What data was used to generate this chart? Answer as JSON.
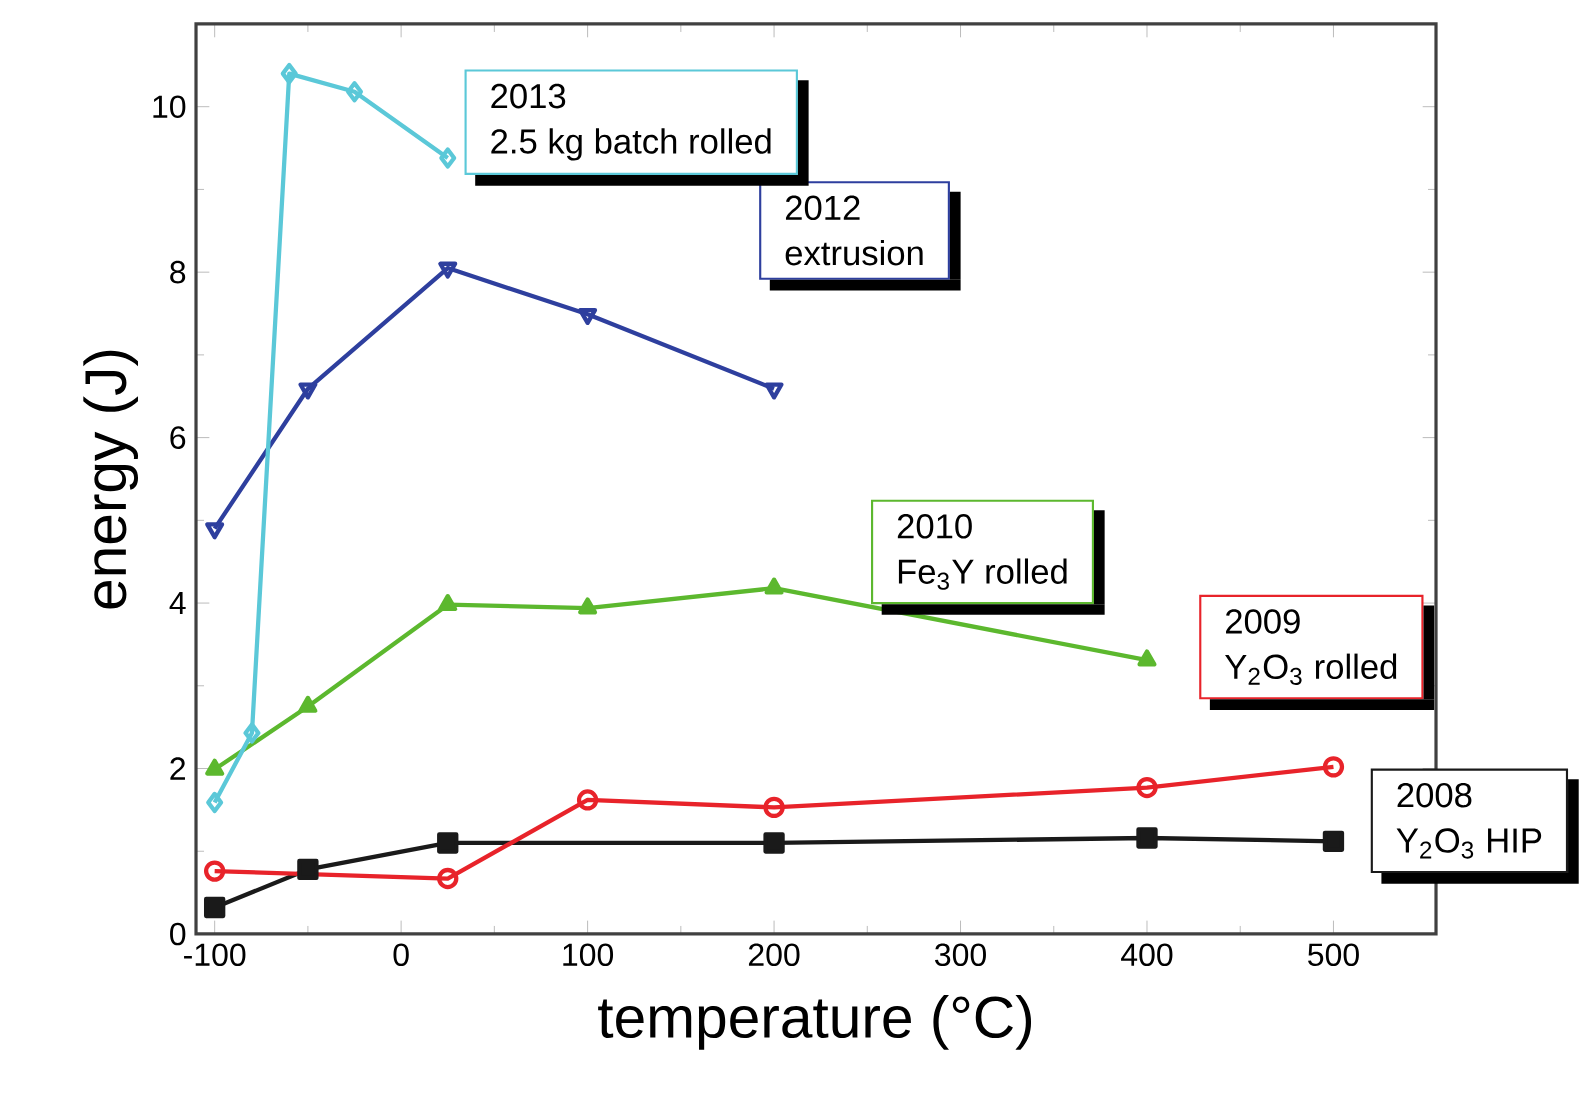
{
  "chart_data": {
    "type": "line",
    "xlabel": "temperature (°C)",
    "ylabel": "energy (J)",
    "xlim": [
      -110,
      555
    ],
    "ylim": [
      0,
      11
    ],
    "xticks": [
      -100,
      0,
      100,
      200,
      300,
      400,
      500
    ],
    "yticks": [
      0,
      2,
      4,
      6,
      8,
      10
    ],
    "line_style": "solid",
    "series": [
      {
        "name": "2008",
        "color": "#1a1a1a",
        "marker": "square",
        "x": [
          -100,
          -50,
          25,
          200,
          400,
          500
        ],
        "values": [
          0.32,
          0.78,
          1.1,
          1.1,
          1.16,
          1.12
        ]
      },
      {
        "name": "2009",
        "color": "#e8232a",
        "marker": "circle",
        "x": [
          -100,
          25,
          100,
          200,
          400,
          500
        ],
        "values": [
          0.76,
          0.67,
          1.62,
          1.53,
          1.77,
          2.02
        ]
      },
      {
        "name": "2010",
        "color": "#5cb82e",
        "marker": "triangle",
        "x": [
          -100,
          -50,
          25,
          100,
          200,
          400
        ],
        "values": [
          1.99,
          2.75,
          3.98,
          3.94,
          4.18,
          3.31
        ]
      },
      {
        "name": "2012",
        "color": "#2e3f9e",
        "marker": "triangle_down",
        "x": [
          -100,
          -50,
          25,
          100,
          200
        ],
        "values": [
          4.9,
          6.59,
          8.05,
          7.49,
          6.59
        ]
      },
      {
        "name": "2013",
        "color": "#5bc8d8",
        "marker": "diamond",
        "x": [
          -100,
          -80,
          -60,
          -25,
          25
        ],
        "values": [
          1.59,
          2.43,
          10.4,
          10.18,
          9.38
        ]
      }
    ],
    "annotations": [
      "Y$_{2}$O$_{3}$ HIP",
      "Y$_{2}$O$_{3}$ rolled",
      "Fe$_{3}$Y rolled",
      "extrusion",
      "2.5 kg batch rolled"
    ]
  }
}
